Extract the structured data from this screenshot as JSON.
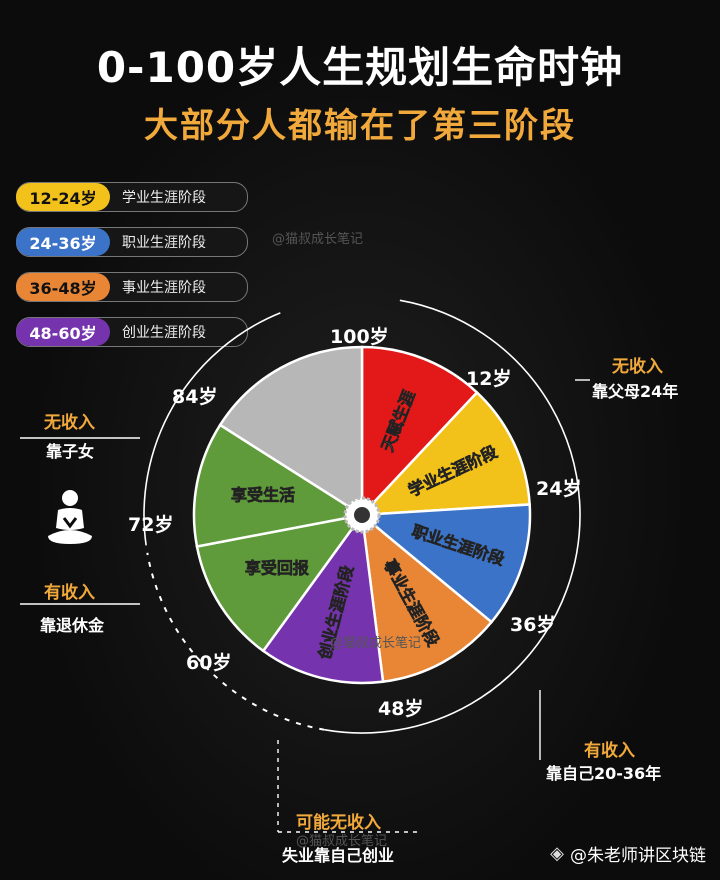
{
  "title": "0-100岁人生规划生命时钟",
  "subtitle": "大部分人都输在了第三阶段",
  "watermark": "@猫叔成长笔记",
  "legend": [
    {
      "range": "12-24岁",
      "label": "学业生涯阶段",
      "color": "#f3c21a"
    },
    {
      "range": "24-36岁",
      "label": "职业生涯阶段",
      "color": "#3b73c8"
    },
    {
      "range": "36-48岁",
      "label": "事业生涯阶段",
      "color": "#e88636"
    },
    {
      "range": "48-60岁",
      "label": "创业生涯阶段",
      "color": "#7533ad"
    }
  ],
  "clock": {
    "start_age": 0,
    "end_age": 100,
    "segments": [
      {
        "from": 0,
        "to": 12,
        "label": "天赋生涯",
        "color": "#e31818"
      },
      {
        "from": 12,
        "to": 24,
        "label": "学业生涯阶段",
        "color": "#f3c21a"
      },
      {
        "from": 24,
        "to": 36,
        "label": "职业生涯阶段",
        "color": "#3b73c8"
      },
      {
        "from": 36,
        "to": 48,
        "label": "事业生涯阶段",
        "color": "#e88636"
      },
      {
        "from": 48,
        "to": 60,
        "label": "创业生涯阶段",
        "color": "#7533ad"
      },
      {
        "from": 60,
        "to": 72,
        "label": "享受回报",
        "color": "#5f9a3b"
      },
      {
        "from": 72,
        "to": 84,
        "label": "享受生活",
        "color": "#5f9a3b"
      },
      {
        "from": 84,
        "to": 100,
        "label": "",
        "color": "#b7b7b7"
      }
    ],
    "age_markers": [
      "100岁",
      "12岁",
      "24岁",
      "36岁",
      "48岁",
      "60岁",
      "72岁",
      "84岁"
    ]
  },
  "annotations": {
    "top_right": {
      "status": "无收入",
      "detail": "靠父母24年"
    },
    "left_top": {
      "status": "无收入",
      "detail": "靠子女"
    },
    "left_bottom": {
      "status": "有收入",
      "detail": "靠退休金"
    },
    "bottom_right": {
      "status": "有收入",
      "detail": "靠自己20-36年"
    },
    "bottom": {
      "status": "可能无收入",
      "detail": "失业靠自己创业"
    }
  },
  "brand": {
    "icon": "binance-icon",
    "text": "@朱老师讲区块链"
  }
}
